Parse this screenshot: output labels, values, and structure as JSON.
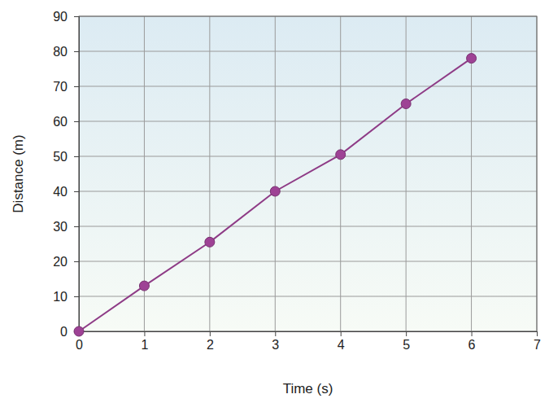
{
  "chart_data": {
    "type": "line",
    "x": [
      0,
      1,
      2,
      3,
      4,
      5,
      6
    ],
    "values": [
      0,
      13,
      25.5,
      40,
      50.5,
      65,
      78
    ],
    "color": "#8e3b86",
    "marker": "circle",
    "x_label": "Time (s)",
    "y_label": "Distance (m)",
    "xlim": [
      0,
      7
    ],
    "xticks": [
      0,
      1,
      2,
      3,
      4,
      5,
      6,
      7
    ],
    "ylim": [
      0,
      90
    ],
    "yticks": [
      0,
      10,
      20,
      30,
      40,
      50,
      60,
      70,
      80,
      90
    ],
    "grid": true
  }
}
